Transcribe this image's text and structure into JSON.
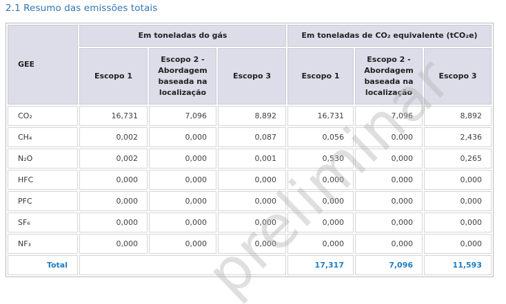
{
  "page": {
    "title": "2.1 Resumo das emissões totais"
  },
  "table": {
    "corner_header": "GEE",
    "group_headers": [
      "Em toneladas do gás",
      "Em toneladas de CO₂ equivalente (tCO₂e)"
    ],
    "sub_headers": [
      "Escopo 1",
      "Escopo 2 - Abordagem baseada na localização",
      "Escopo 3",
      "Escopo 1",
      "Escopo 2 - Abordagem baseada na localização",
      "Escopo 3"
    ],
    "rows": [
      {
        "gas": "CO₂",
        "values": [
          "16,731",
          "7,096",
          "8,892",
          "16,731",
          "7,096",
          "8,892"
        ]
      },
      {
        "gas": "CH₄",
        "values": [
          "0,002",
          "0,000",
          "0,087",
          "0,056",
          "0,000",
          "2,436"
        ]
      },
      {
        "gas": "N₂O",
        "values": [
          "0,002",
          "0,000",
          "0,001",
          "0,530",
          "0,000",
          "0,265"
        ]
      },
      {
        "gas": "HFC",
        "values": [
          "0,000",
          "0,000",
          "0,000",
          "0,000",
          "0,000",
          "0,000"
        ]
      },
      {
        "gas": "PFC",
        "values": [
          "0,000",
          "0,000",
          "0,000",
          "0,000",
          "0,000",
          "0,000"
        ]
      },
      {
        "gas": "SF₆",
        "values": [
          "0,000",
          "0,000",
          "0,000",
          "0,000",
          "0,000",
          "0,000"
        ]
      },
      {
        "gas": "NF₃",
        "values": [
          "0,000",
          "0,000",
          "0,000",
          "0,000",
          "0,000",
          "0,000"
        ]
      }
    ],
    "total_row": {
      "label": "Total",
      "values": [
        "17,317",
        "7,096",
        "11,593"
      ]
    }
  },
  "watermark": {
    "text": "preliminar"
  },
  "colors": {
    "title_blue": "#2e74b5",
    "total_blue": "#1a7dc4",
    "header_background": "#dcdde9",
    "cell_border": "#d4d4d4",
    "outer_border": "#b9b9b9",
    "body_text": "#3f3f3f",
    "watermark_gray": "#d0d0d0"
  }
}
